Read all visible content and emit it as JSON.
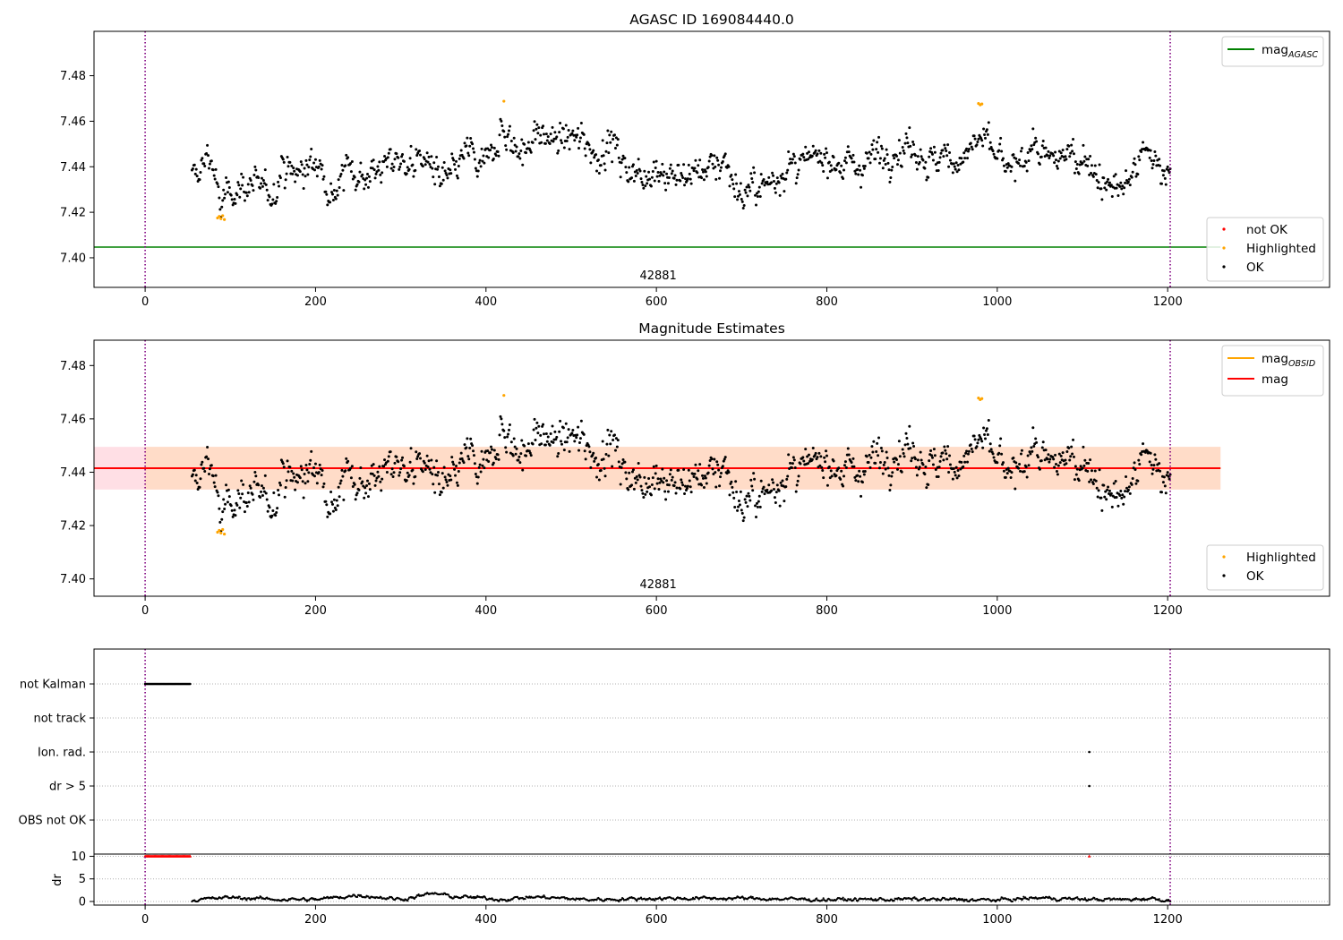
{
  "chart_data": [
    {
      "type": "scatter",
      "title": "AGASC ID 169084440.0",
      "ylim": [
        7.387,
        7.4995
      ],
      "xlim": [
        -60,
        1390
      ],
      "xticks": [
        0,
        200,
        400,
        600,
        800,
        1000,
        1200
      ],
      "yticks": [
        7.4,
        7.42,
        7.44,
        7.46,
        7.48
      ],
      "ytick_labels": [
        "7.40",
        "7.42",
        "7.44",
        "7.46",
        "7.48"
      ],
      "obsid_label": "42881",
      "obsid_label_x": 600,
      "obs_boundaries": [
        0,
        1203
      ],
      "lines": [
        {
          "name": "mag_AGASC",
          "label_main": "mag",
          "label_sub": "AGASC",
          "value": 7.4047,
          "x_range": [
            -60,
            1262
          ],
          "color": "#008000"
        }
      ],
      "legend_top": [
        {
          "kind": "line",
          "main": "mag",
          "sub": "AGASC",
          "color": "#008000"
        }
      ],
      "legend_bottom": [
        {
          "kind": "dot",
          "label": "not OK",
          "color": "#ff0000"
        },
        {
          "kind": "dot",
          "label": "Highlighted",
          "color": "#ffa500"
        },
        {
          "kind": "dot",
          "label": "OK",
          "color": "#000000"
        }
      ],
      "series": [
        {
          "name": "OK",
          "color": "#000000",
          "points_ref": "mag_samples"
        },
        {
          "name": "Highlighted",
          "color": "#ffa500",
          "points": [
            [
              85,
              7.4175
            ],
            [
              87,
              7.4182
            ],
            [
              89,
              7.4172
            ],
            [
              91,
              7.4185
            ],
            [
              93,
              7.4168
            ],
            [
              421,
              7.4688
            ],
            [
              978,
              7.4678
            ],
            [
              980,
              7.4672
            ],
            [
              982,
              7.4676
            ]
          ]
        }
      ]
    },
    {
      "type": "scatter",
      "title": "Magnitude Estimates",
      "ylim": [
        7.3935,
        7.4895
      ],
      "xlim": [
        -60,
        1390
      ],
      "xticks": [
        0,
        200,
        400,
        600,
        800,
        1000,
        1200
      ],
      "yticks": [
        7.4,
        7.42,
        7.44,
        7.46,
        7.48
      ],
      "ytick_labels": [
        "7.40",
        "7.42",
        "7.44",
        "7.46",
        "7.48"
      ],
      "obsid_label": "42881",
      "obsid_label_x": 600,
      "obs_boundaries": [
        0,
        1203
      ],
      "lines": [
        {
          "name": "mag_OBSID",
          "value": 7.4415,
          "x_range": [
            -60,
            1262
          ],
          "color": "#ffa500"
        },
        {
          "name": "mag",
          "value": 7.4415,
          "x_range": [
            -60,
            1262
          ],
          "color": "#ff0000"
        }
      ],
      "bands": [
        {
          "name": "mag_OBSID band",
          "y": [
            7.4335,
            7.4495
          ],
          "x_range": [
            -60,
            1262
          ],
          "color": "#ffdab9"
        },
        {
          "name": "mag band",
          "y": [
            7.4335,
            7.4495
          ],
          "x_range": [
            -60,
            1262
          ],
          "color": "#ffc0cb"
        }
      ],
      "legend_top": [
        {
          "kind": "line",
          "main": "mag",
          "sub": "OBSID",
          "color": "#ffa500"
        },
        {
          "kind": "line",
          "main": "mag",
          "sub": "",
          "color": "#ff0000"
        }
      ],
      "legend_bottom": [
        {
          "kind": "dot",
          "label": "Highlighted",
          "color": "#ffa500"
        },
        {
          "kind": "dot",
          "label": "OK",
          "color": "#000000"
        }
      ],
      "series": [
        {
          "name": "OK",
          "color": "#000000",
          "points_ref": "mag_samples"
        },
        {
          "name": "Highlighted",
          "color": "#ffa500",
          "points": [
            [
              85,
              7.4175
            ],
            [
              87,
              7.4182
            ],
            [
              89,
              7.4172
            ],
            [
              91,
              7.4185
            ],
            [
              93,
              7.4168
            ],
            [
              421,
              7.4688
            ],
            [
              978,
              7.4678
            ],
            [
              980,
              7.4672
            ],
            [
              982,
              7.4676
            ]
          ]
        }
      ]
    },
    {
      "type": "scatter",
      "title": "",
      "xlim": [
        -60,
        1390
      ],
      "xticks": [
        0,
        200,
        400,
        600,
        800,
        1000,
        1200
      ],
      "flag_rows": [
        "not Kalman",
        "not track",
        "Ion. rad.",
        "dr > 5",
        "OBS not OK"
      ],
      "flag_events": [
        {
          "row": "not Kalman",
          "x_range": [
            0,
            53
          ]
        },
        {
          "row": "Ion. rad.",
          "x": 1108
        },
        {
          "row": "dr > 5",
          "x": 1108
        }
      ],
      "obs_boundaries": [
        0,
        1203
      ],
      "dr": {
        "ylabel": "dr",
        "ylim": [
          -0.8,
          10.5
        ],
        "yticks": [
          0,
          5,
          10
        ],
        "clipped_markers": [
          {
            "x_range": [
              0,
              53
            ],
            "value": 10,
            "color": "#ff0000"
          },
          {
            "x": 1108,
            "value": 10,
            "color": "#ff0000"
          }
        ],
        "levels": [
          [
            55,
            0.3
          ],
          [
            100,
            0.9
          ],
          [
            150,
            0.5
          ],
          [
            200,
            0.4
          ],
          [
            250,
            1.4
          ],
          [
            300,
            0.5
          ],
          [
            340,
            1.8
          ],
          [
            360,
            1.1
          ],
          [
            420,
            0.5
          ],
          [
            460,
            1.0
          ],
          [
            520,
            0.4
          ],
          [
            600,
            0.7
          ],
          [
            700,
            0.7
          ],
          [
            800,
            0.4
          ],
          [
            900,
            0.5
          ],
          [
            1000,
            0.3
          ],
          [
            1050,
            0.8
          ],
          [
            1100,
            0.5
          ],
          [
            1150,
            0.4
          ],
          [
            1180,
            0.7
          ],
          [
            1203,
            0.1
          ]
        ]
      }
    }
  ],
  "mag_samples": {
    "x_start": 55,
    "x_end": 1203,
    "step": 1,
    "knots": [
      [
        55,
        7.4345
      ],
      [
        65,
        7.438
      ],
      [
        72,
        7.446
      ],
      [
        78,
        7.444
      ],
      [
        83,
        7.433
      ],
      [
        88,
        7.421
      ],
      [
        95,
        7.427
      ],
      [
        105,
        7.431
      ],
      [
        120,
        7.432
      ],
      [
        135,
        7.43
      ],
      [
        150,
        7.428
      ],
      [
        160,
        7.44
      ],
      [
        180,
        7.437
      ],
      [
        200,
        7.441
      ],
      [
        210,
        7.443
      ],
      [
        215,
        7.428
      ],
      [
        225,
        7.431
      ],
      [
        240,
        7.441
      ],
      [
        255,
        7.436
      ],
      [
        275,
        7.439
      ],
      [
        290,
        7.443
      ],
      [
        300,
        7.442
      ],
      [
        320,
        7.442
      ],
      [
        335,
        7.443
      ],
      [
        345,
        7.432
      ],
      [
        360,
        7.436
      ],
      [
        380,
        7.448
      ],
      [
        390,
        7.44
      ],
      [
        400,
        7.44
      ],
      [
        410,
        7.452
      ],
      [
        420,
        7.456
      ],
      [
        440,
        7.446
      ],
      [
        460,
        7.454
      ],
      [
        480,
        7.452
      ],
      [
        500,
        7.452
      ],
      [
        520,
        7.452
      ],
      [
        530,
        7.443
      ],
      [
        545,
        7.452
      ],
      [
        560,
        7.442
      ],
      [
        580,
        7.436
      ],
      [
        600,
        7.44
      ],
      [
        620,
        7.435
      ],
      [
        640,
        7.437
      ],
      [
        660,
        7.44
      ],
      [
        680,
        7.443
      ],
      [
        700,
        7.427
      ],
      [
        715,
        7.43
      ],
      [
        730,
        7.432
      ],
      [
        750,
        7.439
      ],
      [
        770,
        7.44
      ],
      [
        800,
        7.446
      ],
      [
        820,
        7.44
      ],
      [
        840,
        7.441
      ],
      [
        860,
        7.447
      ],
      [
        880,
        7.446
      ],
      [
        900,
        7.451
      ],
      [
        920,
        7.441
      ],
      [
        940,
        7.444
      ],
      [
        960,
        7.444
      ],
      [
        980,
        7.453
      ],
      [
        1000,
        7.444
      ],
      [
        1020,
        7.437
      ],
      [
        1040,
        7.45
      ],
      [
        1060,
        7.441
      ],
      [
        1080,
        7.446
      ],
      [
        1100,
        7.445
      ],
      [
        1120,
        7.436
      ],
      [
        1130,
        7.428
      ],
      [
        1140,
        7.433
      ],
      [
        1150,
        7.43
      ],
      [
        1160,
        7.437
      ],
      [
        1175,
        7.447
      ],
      [
        1190,
        7.44
      ],
      [
        1203,
        7.439
      ]
    ],
    "scatter": 0.0042
  }
}
